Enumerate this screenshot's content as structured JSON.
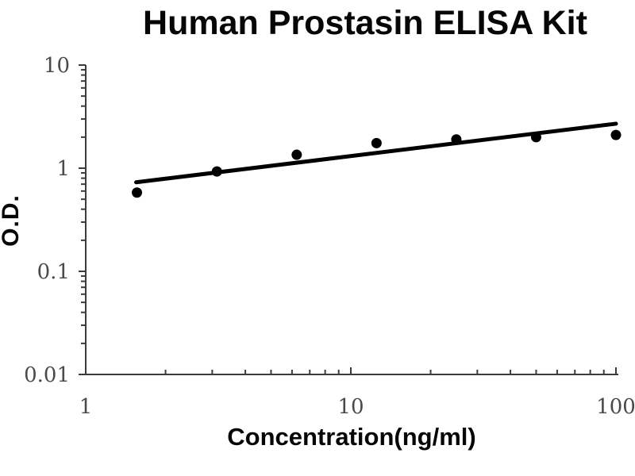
{
  "page": {
    "background": "#ffffff"
  },
  "chart_data": {
    "type": "scatter",
    "title": "Human Prostasin ELISA Kit",
    "xlabel": "Concentration(ng/ml)",
    "ylabel": "O.D.",
    "x_scale": "log",
    "y_scale": "log",
    "xlim": [
      1,
      100
    ],
    "ylim": [
      0.01,
      10
    ],
    "x_ticks": [
      1,
      10,
      100
    ],
    "x_tick_labels": [
      "1",
      "10",
      "100"
    ],
    "y_ticks": [
      10,
      1,
      0.1,
      0.01
    ],
    "y_tick_labels": [
      "10",
      "1",
      "0.1",
      "0.01"
    ],
    "x_minor_tick_decades": [
      1,
      10
    ],
    "y_minor_tick_decades": [
      0.01,
      0.1,
      1
    ],
    "grid": false,
    "legend": "none",
    "series": [
      {
        "name": "standard-points",
        "type": "scatter",
        "x": [
          1.56,
          3.125,
          6.25,
          12.5,
          25,
          50,
          100
        ],
        "y": [
          0.58,
          0.93,
          1.35,
          1.75,
          1.9,
          2.0,
          2.1
        ]
      },
      {
        "name": "fit-line",
        "type": "line",
        "x": [
          1.55,
          100
        ],
        "y": [
          0.73,
          2.7
        ]
      }
    ],
    "colors": {
      "points": "#000000",
      "line": "#000000",
      "axis": "#3c3c3c",
      "tick_label": "#4a4a4a",
      "title": "#060606"
    }
  }
}
